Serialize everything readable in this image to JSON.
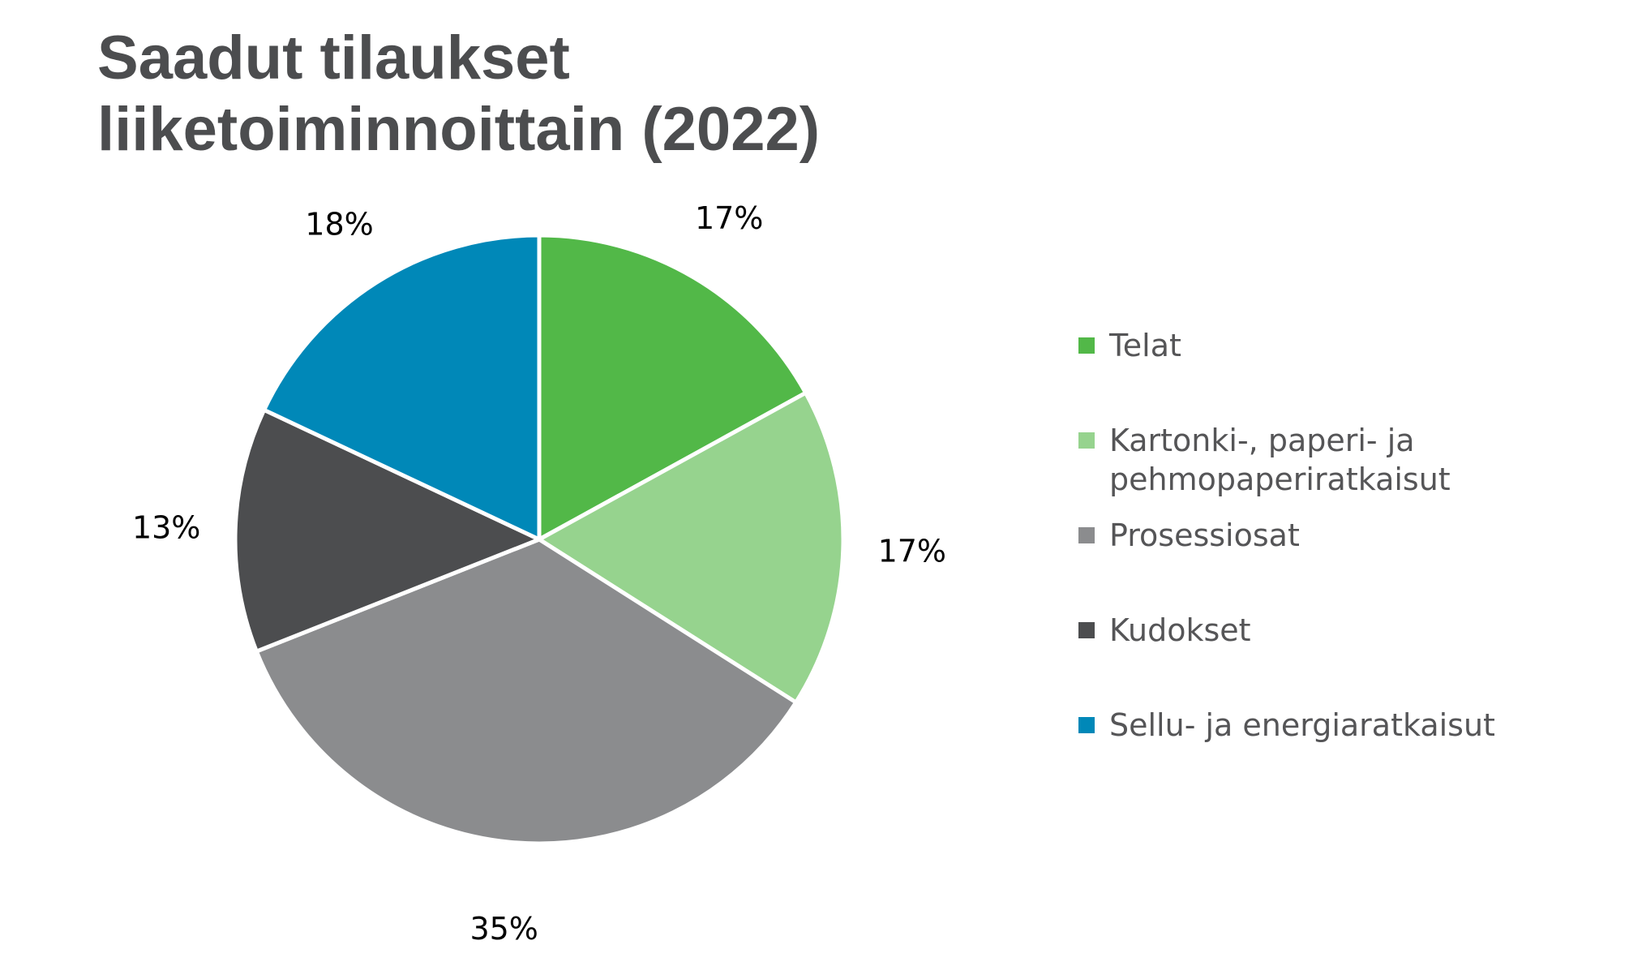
{
  "title_lines": [
    "Saadut tilaukset",
    "liiketoiminnoittain (2022)"
  ],
  "chart_data": {
    "type": "pie",
    "title": "Saadut tilaukset liiketoiminnoittain (2022)",
    "categories": [
      "Telat",
      "Kartonki-, paperi- ja pehmopaperiratkaisut",
      "Prosessiosat",
      "Kudokset",
      "Sellu- ja energiaratkaisut"
    ],
    "values": [
      17,
      17,
      35,
      13,
      18
    ],
    "unit": "%",
    "data_labels": [
      "17%",
      "17%",
      "35%",
      "13%",
      "18%"
    ],
    "legend": {
      "position": "right",
      "entries": [
        {
          "lines": [
            "Telat"
          ]
        },
        {
          "lines": [
            "Kartonki-, paperi- ja",
            "pehmopaperiratkaisut"
          ]
        },
        {
          "lines": [
            "Prosessiosat"
          ]
        },
        {
          "lines": [
            "Kudokset"
          ]
        },
        {
          "lines": [
            "Sellu- ja energiaratkaisut"
          ]
        }
      ]
    },
    "colors": [
      "#52b848",
      "#96d38e",
      "#8b8c8e",
      "#4c4d4f",
      "#0088b8"
    ],
    "start": "12 o'clock, clockwise"
  }
}
